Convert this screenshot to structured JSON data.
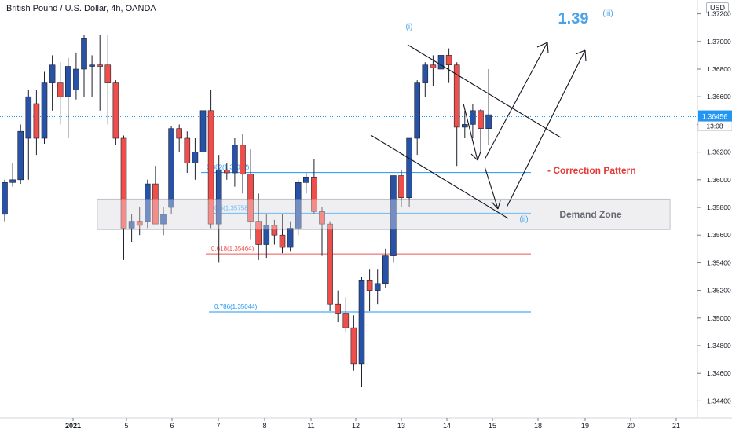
{
  "header": {
    "title": "British Pound / U.S. Dollar, 4h, OANDA",
    "currency": "USD"
  },
  "price_badge": {
    "price": "1.36456",
    "countdown": "13:08"
  },
  "chart_data": {
    "type": "candlestick",
    "title": "British Pound / U.S. Dollar, 4h, OANDA",
    "ylim": [
      1.343,
      1.373
    ],
    "y_ticks": [
      "1.37200",
      "1.37000",
      "1.36800",
      "1.36600",
      "1.36400",
      "1.36200",
      "1.36000",
      "1.35800",
      "1.35600",
      "1.35400",
      "1.35200",
      "1.35000",
      "1.34800",
      "1.34600",
      "1.34400"
    ],
    "x_ticks": [
      "2021",
      "5",
      "6",
      "7",
      "8",
      "11",
      "12",
      "13",
      "14",
      "15",
      "18",
      "19",
      "20",
      "21"
    ],
    "current_price": 1.36456,
    "candles": [
      {
        "o": 1.3575,
        "h": 1.36,
        "l": 1.357,
        "c": 1.3598
      },
      {
        "o": 1.3598,
        "h": 1.3612,
        "l": 1.3595,
        "c": 1.36
      },
      {
        "o": 1.36,
        "h": 1.364,
        "l": 1.3597,
        "c": 1.3635
      },
      {
        "o": 1.363,
        "h": 1.3665,
        "l": 1.36,
        "c": 1.366
      },
      {
        "o": 1.3655,
        "h": 1.3665,
        "l": 1.3618,
        "c": 1.363
      },
      {
        "o": 1.363,
        "h": 1.3678,
        "l": 1.3626,
        "c": 1.367
      },
      {
        "o": 1.367,
        "h": 1.369,
        "l": 1.365,
        "c": 1.3683
      },
      {
        "o": 1.367,
        "h": 1.3685,
        "l": 1.364,
        "c": 1.366
      },
      {
        "o": 1.366,
        "h": 1.3688,
        "l": 1.363,
        "c": 1.3682
      },
      {
        "o": 1.3665,
        "h": 1.3692,
        "l": 1.3658,
        "c": 1.368
      },
      {
        "o": 1.368,
        "h": 1.3705,
        "l": 1.366,
        "c": 1.3702
      },
      {
        "o": 1.3682,
        "h": 1.369,
        "l": 1.366,
        "c": 1.3683
      },
      {
        "o": 1.3683,
        "h": 1.3705,
        "l": 1.365,
        "c": 1.3682
      },
      {
        "o": 1.3683,
        "h": 1.3705,
        "l": 1.364,
        "c": 1.367
      },
      {
        "o": 1.367,
        "h": 1.3672,
        "l": 1.3625,
        "c": 1.363
      },
      {
        "o": 1.363,
        "h": 1.3632,
        "l": 1.3542,
        "c": 1.3565
      },
      {
        "o": 1.3565,
        "h": 1.3575,
        "l": 1.3555,
        "c": 1.357
      },
      {
        "o": 1.357,
        "h": 1.358,
        "l": 1.356,
        "c": 1.3567
      },
      {
        "o": 1.357,
        "h": 1.36,
        "l": 1.3565,
        "c": 1.3597
      },
      {
        "o": 1.3597,
        "h": 1.361,
        "l": 1.357,
        "c": 1.3568
      },
      {
        "o": 1.3568,
        "h": 1.358,
        "l": 1.356,
        "c": 1.3575
      },
      {
        "o": 1.358,
        "h": 1.3639,
        "l": 1.3575,
        "c": 1.3637
      },
      {
        "o": 1.3637,
        "h": 1.364,
        "l": 1.362,
        "c": 1.363
      },
      {
        "o": 1.363,
        "h": 1.3635,
        "l": 1.3605,
        "c": 1.3612
      },
      {
        "o": 1.3612,
        "h": 1.363,
        "l": 1.36,
        "c": 1.362
      },
      {
        "o": 1.362,
        "h": 1.3655,
        "l": 1.3605,
        "c": 1.365
      },
      {
        "o": 1.365,
        "h": 1.3665,
        "l": 1.3565,
        "c": 1.3568
      },
      {
        "o": 1.3568,
        "h": 1.3618,
        "l": 1.354,
        "c": 1.3607
      },
      {
        "o": 1.3607,
        "h": 1.3612,
        "l": 1.36,
        "c": 1.3605
      },
      {
        "o": 1.3605,
        "h": 1.363,
        "l": 1.3595,
        "c": 1.3625
      },
      {
        "o": 1.3625,
        "h": 1.3633,
        "l": 1.359,
        "c": 1.3604
      },
      {
        "o": 1.3604,
        "h": 1.3622,
        "l": 1.3557,
        "c": 1.357
      },
      {
        "o": 1.357,
        "h": 1.359,
        "l": 1.3542,
        "c": 1.3553
      },
      {
        "o": 1.3553,
        "h": 1.3575,
        "l": 1.3543,
        "c": 1.3567
      },
      {
        "o": 1.3567,
        "h": 1.3571,
        "l": 1.3553,
        "c": 1.356
      },
      {
        "o": 1.356,
        "h": 1.3575,
        "l": 1.3547,
        "c": 1.3551
      },
      {
        "o": 1.3551,
        "h": 1.357,
        "l": 1.3548,
        "c": 1.3565
      },
      {
        "o": 1.3565,
        "h": 1.36,
        "l": 1.356,
        "c": 1.3598
      },
      {
        "o": 1.3598,
        "h": 1.3605,
        "l": 1.359,
        "c": 1.3602
      },
      {
        "o": 1.3602,
        "h": 1.3615,
        "l": 1.3575,
        "c": 1.3577
      },
      {
        "o": 1.3577,
        "h": 1.358,
        "l": 1.3545,
        "c": 1.3568
      },
      {
        "o": 1.3568,
        "h": 1.357,
        "l": 1.3505,
        "c": 1.351
      },
      {
        "o": 1.351,
        "h": 1.352,
        "l": 1.3497,
        "c": 1.3503
      },
      {
        "o": 1.3503,
        "h": 1.3515,
        "l": 1.349,
        "c": 1.3493
      },
      {
        "o": 1.3493,
        "h": 1.3502,
        "l": 1.3462,
        "c": 1.3467
      },
      {
        "o": 1.3467,
        "h": 1.353,
        "l": 1.345,
        "c": 1.3527
      },
      {
        "o": 1.3527,
        "h": 1.3535,
        "l": 1.3505,
        "c": 1.352
      },
      {
        "o": 1.352,
        "h": 1.3535,
        "l": 1.351,
        "c": 1.3525
      },
      {
        "o": 1.3525,
        "h": 1.355,
        "l": 1.3522,
        "c": 1.3545
      },
      {
        "o": 1.3545,
        "h": 1.3603,
        "l": 1.354,
        "c": 1.3603
      },
      {
        "o": 1.3603,
        "h": 1.3607,
        "l": 1.358,
        "c": 1.3587
      },
      {
        "o": 1.3587,
        "h": 1.363,
        "l": 1.358,
        "c": 1.363
      },
      {
        "o": 1.363,
        "h": 1.3672,
        "l": 1.3618,
        "c": 1.367
      },
      {
        "o": 1.367,
        "h": 1.3685,
        "l": 1.366,
        "c": 1.3683
      },
      {
        "o": 1.3683,
        "h": 1.369,
        "l": 1.3668,
        "c": 1.3681
      },
      {
        "o": 1.368,
        "h": 1.3705,
        "l": 1.3665,
        "c": 1.369
      },
      {
        "o": 1.369,
        "h": 1.3695,
        "l": 1.367,
        "c": 1.3683
      },
      {
        "o": 1.3683,
        "h": 1.3685,
        "l": 1.361,
        "c": 1.3638
      },
      {
        "o": 1.3638,
        "h": 1.365,
        "l": 1.363,
        "c": 1.364
      },
      {
        "o": 1.364,
        "h": 1.3655,
        "l": 1.363,
        "c": 1.365
      },
      {
        "o": 1.365,
        "h": 1.3651,
        "l": 1.362,
        "c": 1.3637
      },
      {
        "o": 1.3637,
        "h": 1.368,
        "l": 1.3625,
        "c": 1.3647
      }
    ],
    "fib_levels": [
      {
        "label": "0.382(1.36052)",
        "value": 1.36052,
        "color": "#2196f3"
      },
      {
        "label": "0.5(1.35758)",
        "value": 1.35758,
        "color": "#2196f3"
      },
      {
        "label": "0.618(1.35464)",
        "value": 1.35464,
        "color": "#ef5350"
      },
      {
        "label": "0.786(1.35044)",
        "value": 1.35044,
        "color": "#2196f3"
      }
    ],
    "zone": {
      "label": "Demand Zone",
      "from": 1.3564,
      "to": 1.3586
    },
    "annotations": {
      "target": "1.39",
      "wave_iii": "(iii)",
      "wave_i": "(i)",
      "wave_ii": "(ii)",
      "correction": "- Correction Pattern"
    }
  },
  "colors": {
    "bull": "#2752a6",
    "bear": "#ef4f4a",
    "fib_blue": "#2196f3",
    "fib_red": "#ef5350",
    "price_badge": "#2196f3",
    "annotation_blue": "#4aa3e8",
    "correction_red": "#e53935"
  }
}
